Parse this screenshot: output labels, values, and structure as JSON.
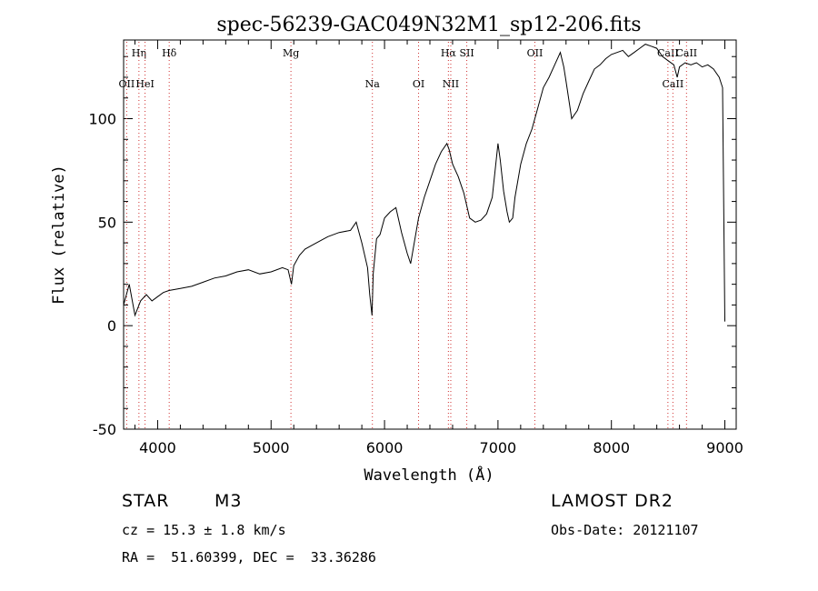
{
  "chart_data": {
    "type": "line",
    "title": "spec-56239-GAC049N32M1_sp12-206.fits",
    "xlabel": "Wavelength (Å)",
    "ylabel": "Flux (relative)",
    "xlim": [
      3700,
      9100
    ],
    "ylim": [
      -50,
      138
    ],
    "xticks": [
      4000,
      5000,
      6000,
      7000,
      8000,
      9000
    ],
    "yticks": [
      -50,
      0,
      50,
      100
    ],
    "grid": false,
    "series": [
      {
        "x": [
          3700,
          3750,
          3800,
          3850,
          3900,
          3950,
          4000,
          4050,
          4100,
          4200,
          4300,
          4400,
          4500,
          4600,
          4700,
          4800,
          4900,
          5000,
          5100,
          5150,
          5180,
          5200,
          5250,
          5300,
          5400,
          5500,
          5600,
          5700,
          5750,
          5800,
          5850,
          5870,
          5890,
          5900,
          5930,
          5960,
          6000,
          6050,
          6100,
          6150,
          6200,
          6230,
          6300,
          6350,
          6400,
          6450,
          6500,
          6550,
          6570,
          6600,
          6650,
          6700,
          6750,
          6800,
          6850,
          6900,
          6950,
          7000,
          7020,
          7050,
          7080,
          7100,
          7130,
          7150,
          7200,
          7250,
          7300,
          7350,
          7400,
          7450,
          7500,
          7550,
          7580,
          7600,
          7650,
          7700,
          7750,
          7800,
          7850,
          7900,
          7950,
          8000,
          8050,
          8100,
          8150,
          8200,
          8250,
          8300,
          8350,
          8400,
          8450,
          8500,
          8550,
          8580,
          8600,
          8650,
          8700,
          8750,
          8800,
          8850,
          8900,
          8950,
          8980,
          9000
        ],
        "y": [
          10,
          20,
          5,
          12,
          15,
          12,
          14,
          16,
          17,
          18,
          19,
          21,
          23,
          24,
          26,
          27,
          25,
          26,
          28,
          27,
          20,
          29,
          34,
          37,
          40,
          43,
          45,
          46,
          50,
          40,
          28,
          15,
          5,
          25,
          42,
          44,
          52,
          55,
          57,
          45,
          35,
          30,
          52,
          62,
          70,
          78,
          84,
          88,
          85,
          78,
          72,
          64,
          52,
          50,
          51,
          54,
          62,
          88,
          80,
          65,
          55,
          50,
          52,
          62,
          78,
          88,
          95,
          105,
          115,
          120,
          126,
          132,
          125,
          118,
          100,
          104,
          112,
          118,
          124,
          126,
          129,
          131,
          132,
          133,
          130,
          132,
          134,
          136,
          135,
          134,
          130,
          128,
          126,
          120,
          125,
          127,
          126,
          127,
          125,
          126,
          124,
          120,
          115,
          2
        ]
      }
    ],
    "lines_top": [
      {
        "label": "Hη",
        "x": 3835
      },
      {
        "label": "Hδ",
        "x": 4102
      },
      {
        "label": "Mg",
        "x": 5175
      },
      {
        "label": "Hα",
        "x": 6563
      },
      {
        "label": "SII",
        "x": 6725
      },
      {
        "label": "OII",
        "x": 7325
      },
      {
        "label": "CaII",
        "x": 8498
      },
      {
        "label": "CaII",
        "x": 8662
      }
    ],
    "lines_bottom": [
      {
        "label": "OII",
        "x": 3727
      },
      {
        "label": "HeI",
        "x": 3889
      },
      {
        "label": "Na",
        "x": 5893
      },
      {
        "label": "OI",
        "x": 6300
      },
      {
        "label": "NII",
        "x": 6584
      },
      {
        "label": "CaII",
        "x": 8542
      }
    ]
  },
  "info": {
    "star_label": "STAR",
    "spectral_type": "M3",
    "survey": "LAMOST DR2",
    "cz": "cz = 15.3 ± 1.8 km/s",
    "obs_date": "Obs-Date: 20121107",
    "coords": "RA =  51.60399, DEC =  33.36286"
  }
}
